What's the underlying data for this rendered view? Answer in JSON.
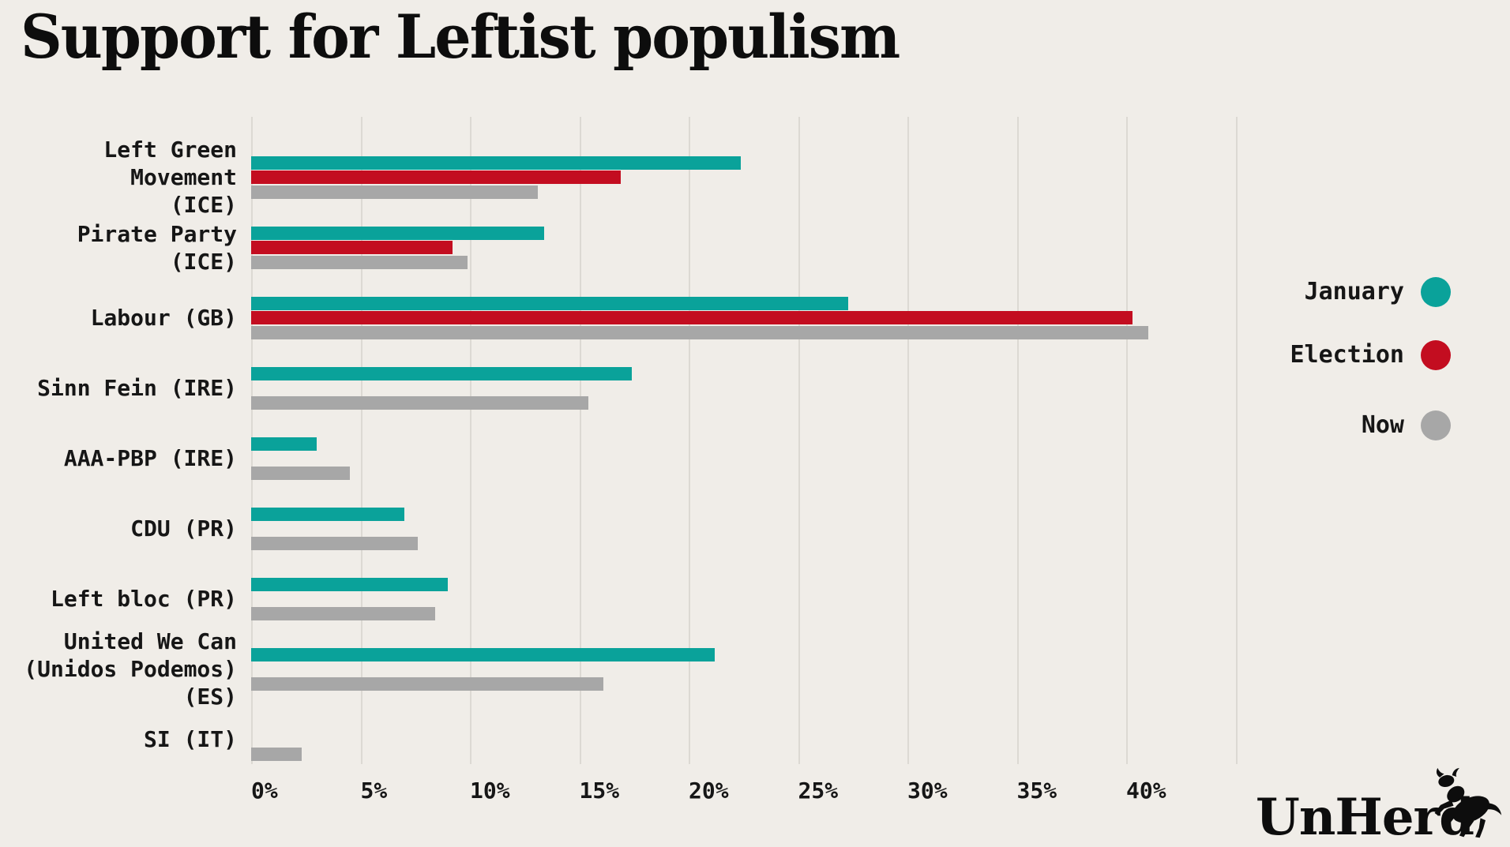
{
  "title": "Support for Leftist populism",
  "brand": {
    "name": "UnHerd",
    "logo_icon": "rearing-cow-icon"
  },
  "colors": {
    "background": "#F0EDE8",
    "january": "#0AA29A",
    "election": "#C30D20",
    "now": "#A7A7A7",
    "gridline": "#DCD9D3",
    "text": "#121212"
  },
  "legend": [
    {
      "label": "January",
      "color_key": "january"
    },
    {
      "label": "Election",
      "color_key": "election"
    },
    {
      "label": "Now",
      "color_key": "now"
    }
  ],
  "chart_data": {
    "type": "bar",
    "orientation": "horizontal",
    "unit": "%",
    "title": "Support for Leftist populism",
    "xlabel": "",
    "ylabel": "",
    "xlim": [
      0,
      45
    ],
    "grid": "vertical",
    "legend_position": "right",
    "x_ticks": [
      "0%",
      "5%",
      "10%",
      "15%",
      "20%",
      "25%",
      "30%",
      "35%",
      "40%"
    ],
    "categories": [
      "Left Green Movement (ICE)",
      "Pirate Party (ICE)",
      "Labour (GB)",
      "Sinn Fein (IRE)",
      "AAA-PBP (IRE)",
      "CDU (PR)",
      "Left bloc (PR)",
      "United We Can (Unidos Podemos) (ES)",
      "SI (IT)"
    ],
    "category_label_lines": [
      [
        "Left Green",
        "Movement",
        "(ICE)"
      ],
      [
        "Pirate Party",
        "(ICE)"
      ],
      [
        "Labour (GB)"
      ],
      [
        "Sinn Fein (IRE)"
      ],
      [
        "AAA-PBP (IRE)"
      ],
      [
        "CDU (PR)"
      ],
      [
        "Left bloc (PR)"
      ],
      [
        "United We Can",
        "(Unidos Podemos)",
        "(ES)"
      ],
      [
        "SI (IT)"
      ]
    ],
    "series": [
      {
        "name": "January",
        "color_key": "january",
        "values": [
          22.4,
          13.4,
          27.3,
          17.4,
          3.0,
          7.0,
          9.0,
          21.2,
          null
        ]
      },
      {
        "name": "Election",
        "color_key": "election",
        "values": [
          16.9,
          9.2,
          40.3,
          null,
          null,
          null,
          null,
          null,
          null
        ]
      },
      {
        "name": "Now",
        "color_key": "now",
        "values": [
          13.1,
          9.9,
          41.0,
          15.4,
          4.5,
          7.6,
          8.4,
          16.1,
          2.3
        ]
      }
    ]
  }
}
